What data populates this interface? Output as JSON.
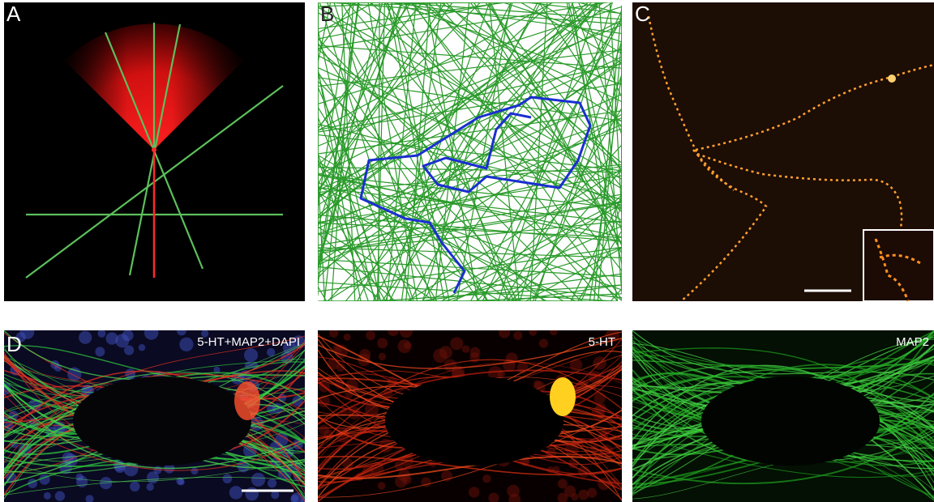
{
  "panels": [
    {
      "label": "A"
    },
    {
      "label": "B"
    },
    {
      "label": "C"
    },
    {
      "label": "D"
    }
  ],
  "channel_labels": [
    "5-HT+MAP2+DAPI",
    "5-HT",
    "MAP2"
  ]
}
